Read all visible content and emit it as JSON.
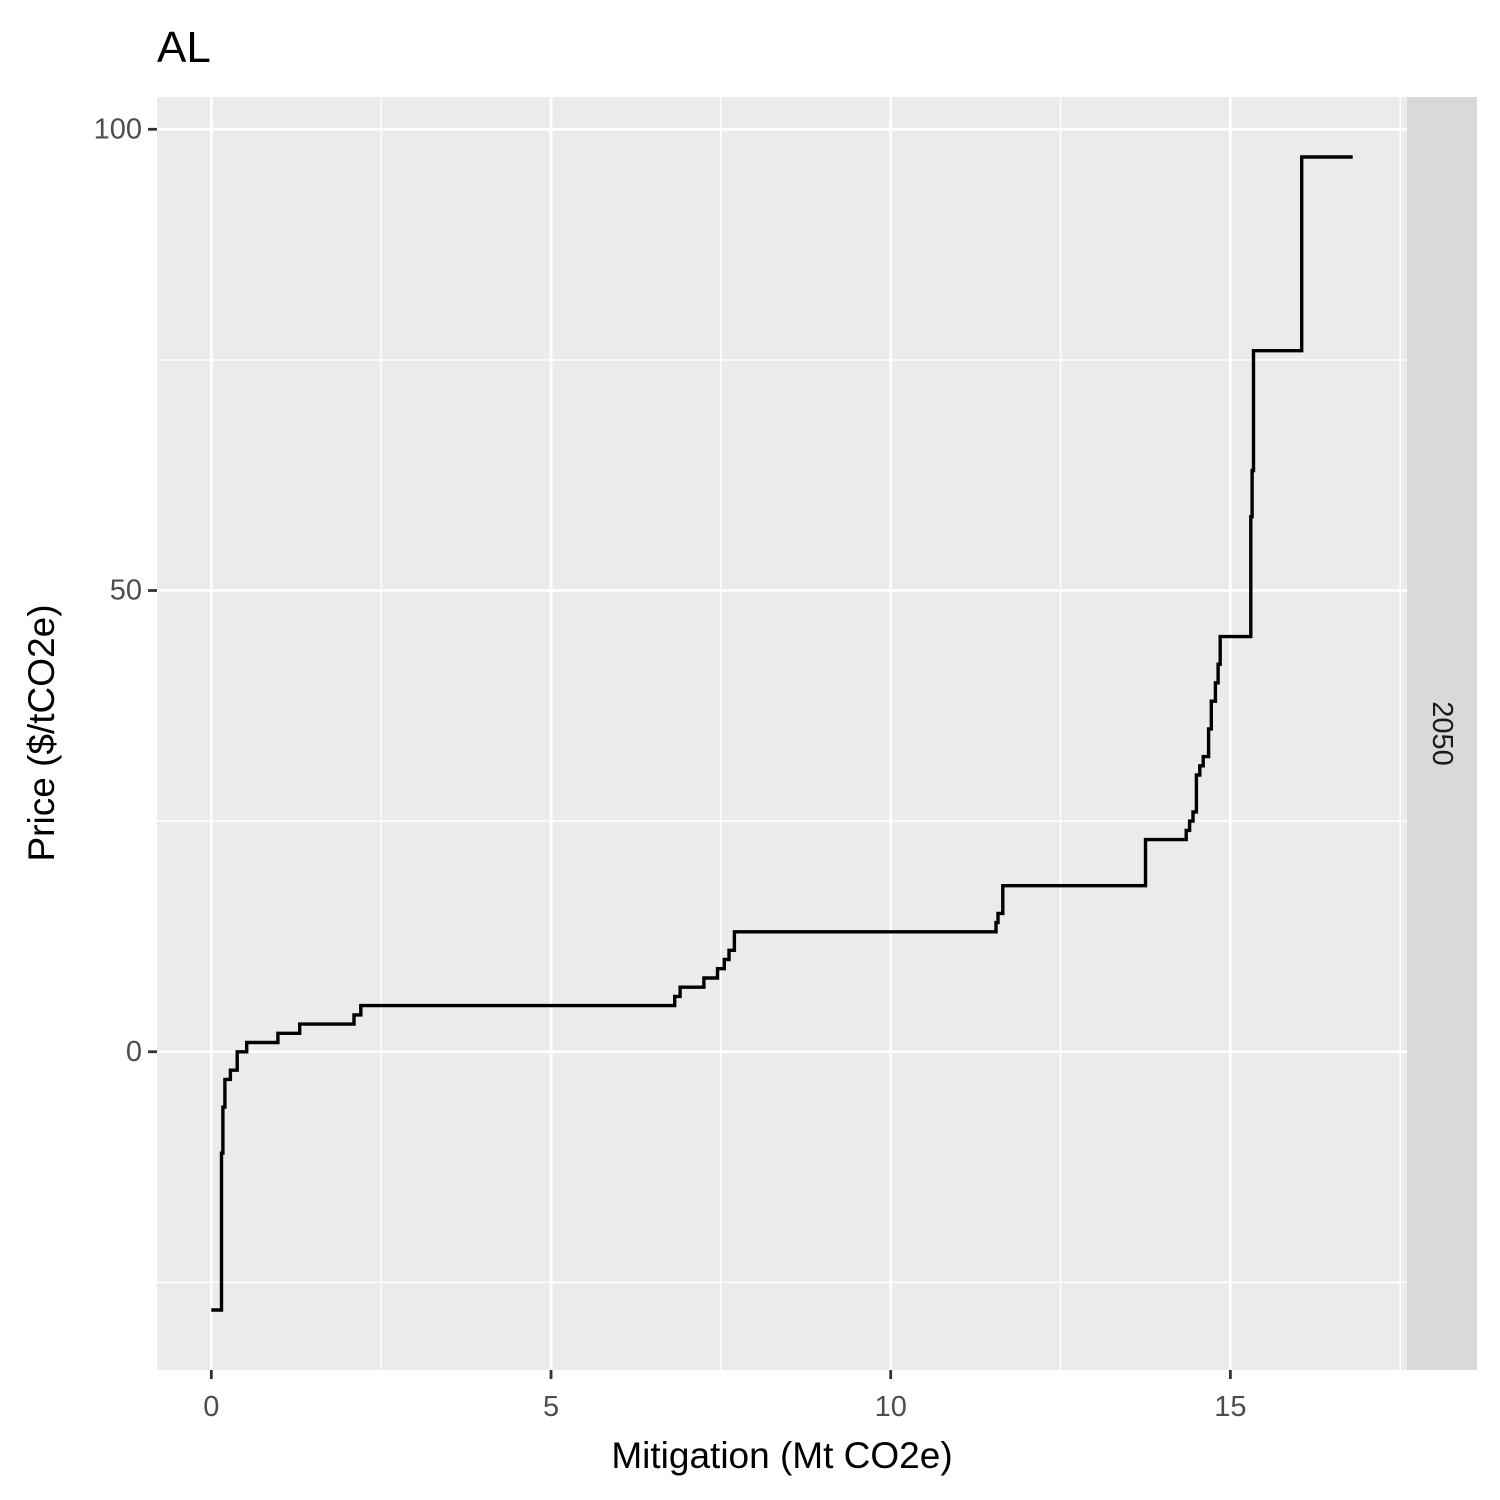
{
  "chart_data": {
    "type": "line",
    "subtype": "step",
    "title": "AL",
    "xlabel": "Mitigation (Mt CO2e)",
    "ylabel": "Price ($/tCO2e)",
    "facet_label": "2050",
    "xlim": [
      -0.8,
      17.6
    ],
    "ylim": [
      -34.5,
      103.5
    ],
    "x_ticks": [
      0,
      5,
      10,
      15
    ],
    "x_tick_labels": [
      "0",
      "5",
      "10",
      "15"
    ],
    "y_ticks": [
      0,
      50,
      100
    ],
    "y_tick_labels": [
      "0",
      "50",
      "100"
    ],
    "x_minor_ticks": [
      2.5,
      7.5,
      12.5,
      17.5
    ],
    "y_minor_ticks": [
      -25,
      25,
      75
    ],
    "grid": true,
    "colors": {
      "panel_background": "#ebebeb",
      "strip_background": "#d9d9d9",
      "grid": "#ffffff",
      "line": "#000000",
      "tick_label": "#4d4d4d"
    },
    "series": [
      {
        "x": [
          0,
          0.15,
          0.15,
          0.17,
          0.17,
          0.2,
          0.2,
          0.28,
          0.28,
          0.38,
          0.38,
          0.52,
          0.52,
          0.98,
          0.98,
          1.3,
          1.3,
          2.1,
          2.1,
          2.2,
          2.2,
          2.35,
          2.35,
          6.82,
          6.82,
          6.9,
          6.9,
          7.25,
          7.25,
          7.45,
          7.45,
          7.55,
          7.55,
          7.62,
          7.62,
          7.7,
          7.7,
          11.55,
          11.55,
          11.58,
          11.58,
          11.65,
          11.65,
          13.75,
          13.75,
          14.35,
          14.35,
          14.4,
          14.4,
          14.45,
          14.45,
          14.5,
          14.5,
          14.55,
          14.55,
          14.6,
          14.6,
          14.68,
          14.68,
          14.72,
          14.72,
          14.78,
          14.78,
          14.82,
          14.82,
          14.85,
          14.85,
          15.3,
          15.3,
          15.32,
          15.32,
          15.34,
          15.34,
          16.05,
          16.05,
          16.8
        ],
        "y": [
          -28,
          -28,
          -11,
          -11,
          -6,
          -6,
          -3,
          -3,
          -2,
          -2,
          0,
          0,
          1,
          1,
          2,
          2,
          3,
          3,
          4,
          4,
          5,
          5,
          5,
          5,
          6,
          6,
          7,
          7,
          8,
          8,
          9,
          9,
          10,
          10,
          11,
          11,
          13,
          13,
          14,
          14,
          15,
          15,
          18,
          18,
          23,
          23,
          24,
          24,
          25,
          25,
          26,
          26,
          30,
          30,
          31,
          31,
          32,
          32,
          35,
          35,
          38,
          38,
          40,
          40,
          42,
          42,
          45,
          45,
          58,
          58,
          63,
          63,
          76,
          76,
          97,
          97
        ]
      }
    ]
  }
}
